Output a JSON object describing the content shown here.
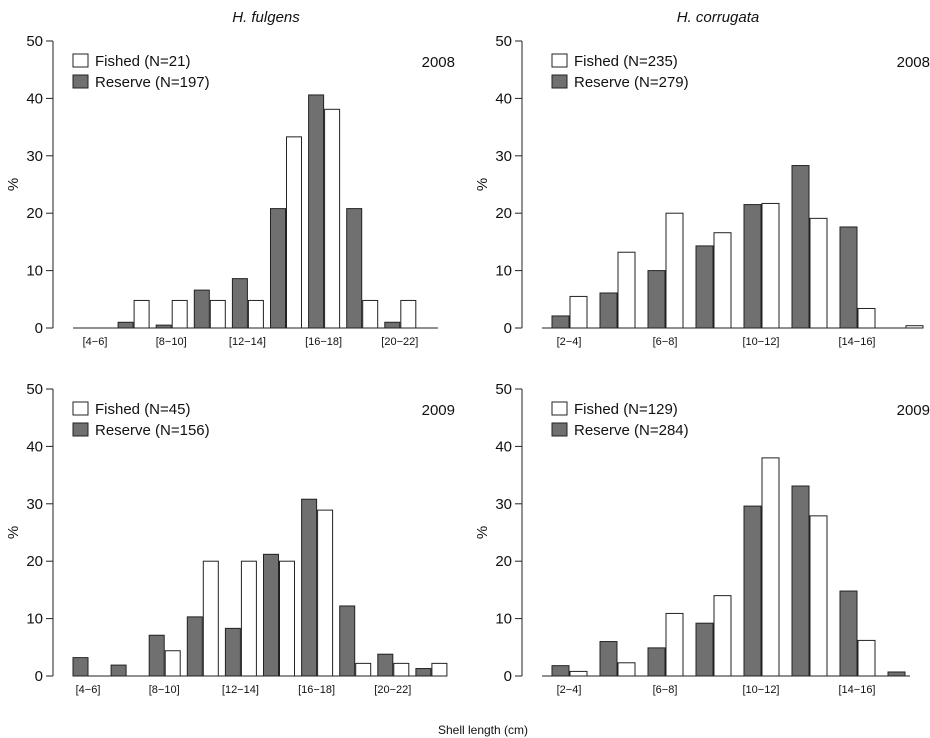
{
  "figure": {
    "column_titles": [
      "H. fulgens",
      "H. corrugata"
    ],
    "xlabel": "Shell length (cm)"
  },
  "colors": {
    "fished": "#ffffff",
    "reserve": "#707070",
    "stroke": "#222222"
  },
  "chart_data": [
    {
      "type": "bar",
      "species": "H. fulgens",
      "year": "2008",
      "ylabel": "%",
      "ylim": [
        0,
        50
      ],
      "yticks": [
        0,
        10,
        20,
        30,
        40,
        50
      ],
      "categories": [
        "[4−6]",
        "[6−8]",
        "[8−10]",
        "[10−12]",
        "[12−14]",
        "[14−16]",
        "[16−18]",
        "[18−20]",
        "[20−22]",
        "[22−24]"
      ],
      "category_labels_shown": [
        "[4−6]",
        "",
        "[8−10]",
        "",
        "[12−14]",
        "",
        "[16−18]",
        "",
        "[20−22]",
        ""
      ],
      "series": [
        {
          "name": "Fished (N=21)",
          "values": [
            0,
            4.8,
            4.8,
            4.8,
            4.8,
            33.3,
            38.1,
            4.8,
            4.8,
            0
          ]
        },
        {
          "name": "Reserve (N=197)",
          "values": [
            0,
            1.0,
            0.5,
            6.6,
            8.6,
            20.8,
            40.6,
            20.8,
            1.0,
            0
          ]
        }
      ],
      "legend": "top-left",
      "grid": false
    },
    {
      "type": "bar",
      "species": "H. corrugata",
      "year": "2008",
      "ylabel": "%",
      "ylim": [
        0,
        50
      ],
      "yticks": [
        0,
        10,
        20,
        30,
        40,
        50
      ],
      "categories": [
        "[2−4]",
        "[4−6]",
        "[6−8]",
        "[8−10]",
        "[10−12]",
        "[12−14]",
        "[14−16]",
        "[16−18]"
      ],
      "category_labels_shown": [
        "[2−4]",
        "",
        "[6−8]",
        "",
        "[10−12]",
        "",
        "[14−16]",
        ""
      ],
      "series": [
        {
          "name": "Fished (N=235)",
          "values": [
            5.5,
            13.2,
            20.0,
            16.6,
            21.7,
            19.1,
            3.4,
            0.4
          ]
        },
        {
          "name": "Reserve (N=279)",
          "values": [
            2.1,
            6.1,
            10.0,
            14.3,
            21.5,
            28.3,
            17.6,
            0
          ]
        }
      ],
      "legend": "top-left",
      "grid": false
    },
    {
      "type": "bar",
      "species": "H. fulgens",
      "year": "2009",
      "ylabel": "%",
      "ylim": [
        0,
        50
      ],
      "yticks": [
        0,
        10,
        20,
        30,
        40,
        50
      ],
      "categories": [
        "[4−6]",
        "[6−8]",
        "[8−10]",
        "[10−12]",
        "[12−14]",
        "[14−16]",
        "[16−18]",
        "[18−20]",
        "[20−22]",
        "[22−24]"
      ],
      "category_labels_shown": [
        "[4−6]",
        "",
        "[8−10]",
        "",
        "[12−14]",
        "",
        "[16−18]",
        "",
        "[20−22]",
        ""
      ],
      "series": [
        {
          "name": "Fished (N=45)",
          "values": [
            0,
            0,
            4.4,
            20.0,
            20.0,
            20.0,
            28.9,
            2.2,
            2.2,
            2.2
          ]
        },
        {
          "name": "Reserve (N=156)",
          "values": [
            3.2,
            1.9,
            7.1,
            10.3,
            8.3,
            21.2,
            30.8,
            12.2,
            3.8,
            1.3
          ]
        }
      ],
      "legend": "top-left",
      "grid": false
    },
    {
      "type": "bar",
      "species": "H. corrugata",
      "year": "2009",
      "ylabel": "%",
      "ylim": [
        0,
        50
      ],
      "yticks": [
        0,
        10,
        20,
        30,
        40,
        50
      ],
      "categories": [
        "[2−4]",
        "[4−6]",
        "[6−8]",
        "[8−10]",
        "[10−12]",
        "[12−14]",
        "[14−16]",
        "[16−18]"
      ],
      "category_labels_shown": [
        "[2−4]",
        "",
        "[6−8]",
        "",
        "[10−12]",
        "",
        "[14−16]",
        ""
      ],
      "series": [
        {
          "name": "Fished (N=129)",
          "values": [
            0.8,
            2.3,
            10.9,
            14.0,
            38.0,
            27.9,
            6.2,
            0
          ]
        },
        {
          "name": "Reserve (N=284)",
          "values": [
            1.8,
            6.0,
            4.9,
            9.2,
            29.6,
            33.1,
            14.8,
            0.7
          ]
        }
      ],
      "legend": "top-left",
      "grid": false
    }
  ]
}
